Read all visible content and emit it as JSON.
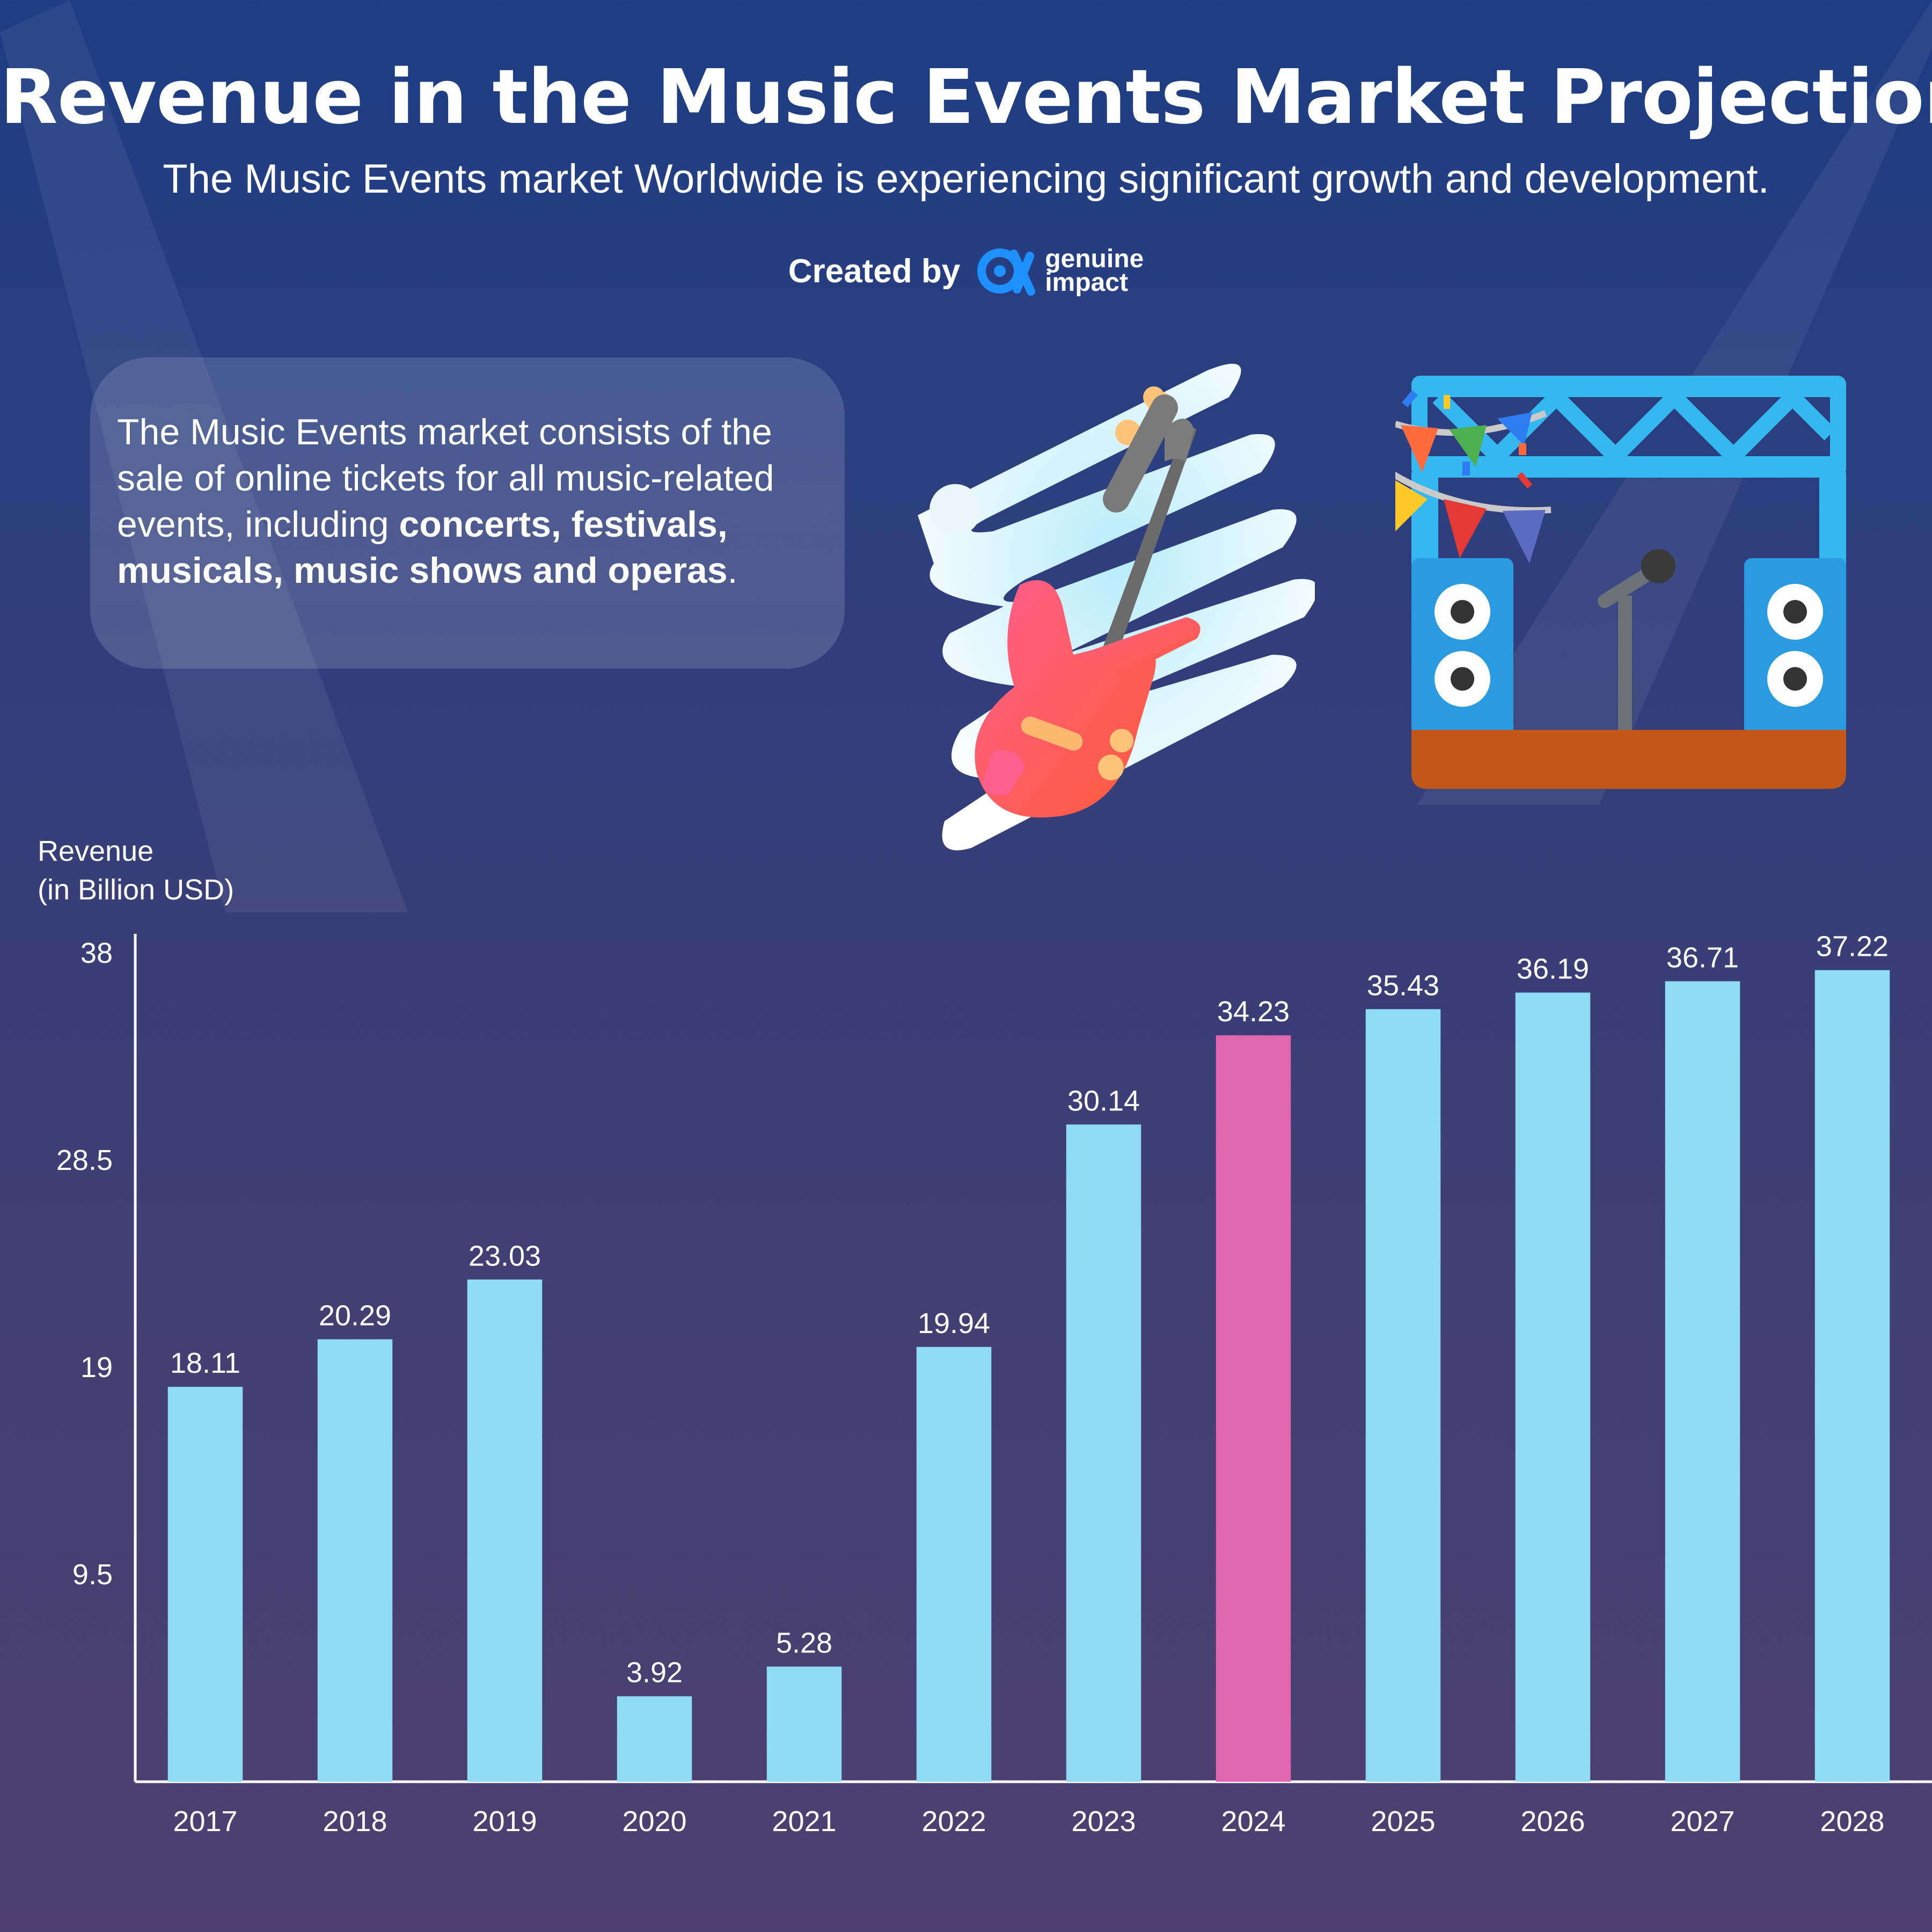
{
  "header": {
    "title": "Revenue in the Music Events Market Projection",
    "subtitle": "The Music Events market Worldwide is experiencing significant growth and development.",
    "credit_label": "Created by",
    "brand_line1": "genuine",
    "brand_line2": "impact"
  },
  "info": {
    "text_prefix": "The Music Events market consists of the sale of online tickets for all music-related events, including ",
    "text_bold": "concerts, festivals, musicals, music shows and operas",
    "text_suffix": "."
  },
  "illustrations": [
    "guitar-icon",
    "stage-icon"
  ],
  "colors": {
    "bar": "#8fdbf4",
    "highlight": "#e066b0",
    "axis": "#ffffff",
    "background_top": "#1d3d84",
    "background_bottom": "#4d4070"
  },
  "chart_data": {
    "type": "bar",
    "ylabel_line1": "Revenue",
    "ylabel_line2": "(in Billion USD)",
    "xlabel": "",
    "categories": [
      "2017",
      "2018",
      "2019",
      "2020",
      "2021",
      "2022",
      "2023",
      "2024",
      "2025",
      "2026",
      "2027",
      "2028"
    ],
    "values": [
      18.11,
      20.29,
      23.03,
      3.92,
      5.28,
      19.94,
      30.14,
      34.23,
      35.43,
      36.19,
      36.71,
      37.22
    ],
    "value_labels": [
      "18.11",
      "20.29",
      "23.03",
      "3.92",
      "5.28",
      "19.94",
      "30.14",
      "34.23",
      "35.43",
      "36.19",
      "36.71",
      "37.22"
    ],
    "highlight_category": "2024",
    "yticks": [
      9.5,
      19,
      28.5,
      38
    ],
    "ytick_labels": [
      "9.5",
      "19",
      "28.5",
      "38"
    ],
    "ylim": [
      0,
      38
    ],
    "grid": false,
    "legend": "none"
  }
}
